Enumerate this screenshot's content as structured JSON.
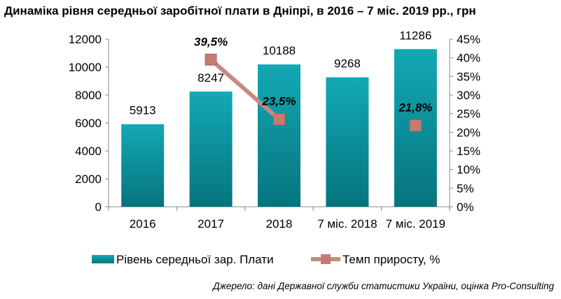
{
  "title": "Динаміка рівня середньої заробітної плати в Дніпрі, в 2016 – 7 міс. 2019 рр., грн",
  "source": "Джерело: дані Державної служби статистики України, оцінка Pro-Consulting",
  "colors": {
    "bar_top": "#12a9b5",
    "bar_bottom": "#06747e",
    "line": "#c58a82",
    "marker": "#c57a72",
    "axis": "#888888"
  },
  "chart_data": {
    "type": "bar",
    "categories": [
      "2016",
      "2017",
      "2018",
      "7 міс. 2018",
      "7 міс. 2019"
    ],
    "series": [
      {
        "name": "Рівень середньої зар. Плати",
        "type": "bar",
        "axis": "left",
        "values": [
          5913,
          8247,
          10188,
          9268,
          11286
        ],
        "labels": [
          "5913",
          "8247",
          "10188",
          "9268",
          "11286"
        ]
      },
      {
        "name": "Темп приросту, %",
        "type": "line",
        "axis": "right",
        "points": [
          {
            "category": "2017",
            "value": 39.5,
            "label": "39,5%"
          },
          {
            "category": "2018",
            "value": 23.5,
            "label": "23,5%"
          },
          {
            "category": "7 міс. 2019",
            "value": 21.8,
            "label": "21,8%"
          }
        ],
        "connected": [
          [
            "2017",
            "2018"
          ]
        ]
      }
    ],
    "y_left": {
      "min": 0,
      "max": 12000,
      "ticks": [
        "0",
        "2000",
        "4000",
        "6000",
        "8000",
        "10000",
        "12000"
      ]
    },
    "y_right": {
      "min": 0,
      "max": 45,
      "ticks": [
        "0%",
        "5%",
        "10%",
        "15%",
        "20%",
        "25%",
        "30%",
        "35%",
        "40%",
        "45%"
      ]
    },
    "xlabel": "",
    "ylabel": "",
    "grid": false,
    "legend_position": "bottom"
  }
}
